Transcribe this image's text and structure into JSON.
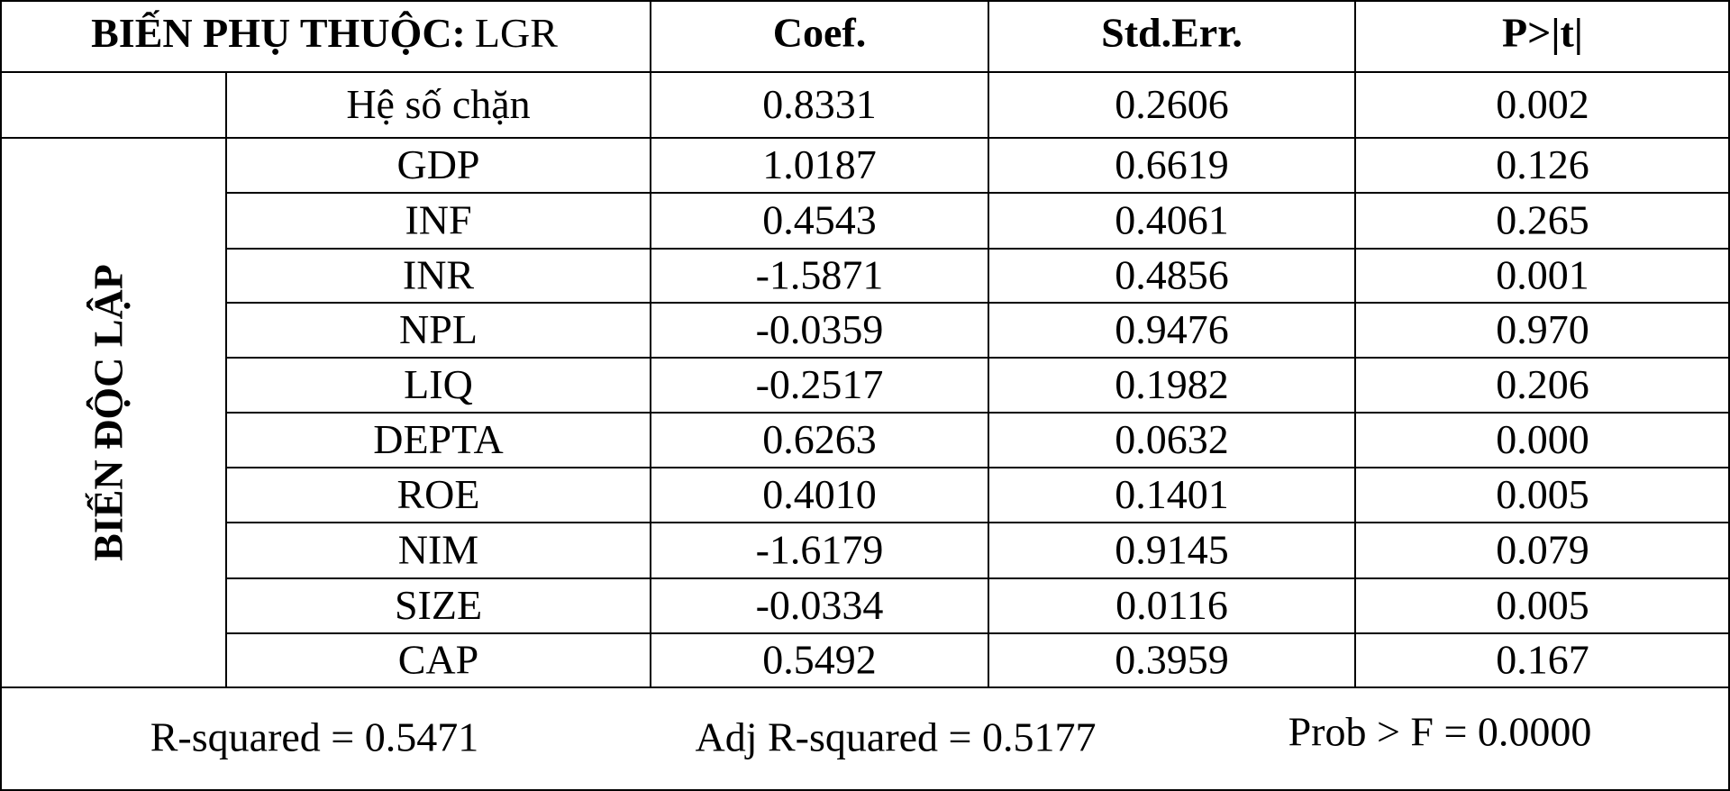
{
  "header": {
    "dependent_label": "BIẾN PHỤ THUỘC:",
    "dependent_var": "LGR",
    "columns": [
      "Coef.",
      "Std.Err.",
      "P>|t|"
    ]
  },
  "table": {
    "group_label": "BIẾN ĐỘC LẬP",
    "rows": [
      [
        "Hệ số chặn",
        "0.8331",
        "0.2606",
        "0.002"
      ],
      [
        "GDP",
        "1.0187",
        "0.6619",
        "0.126"
      ],
      [
        "INF",
        "0.4543",
        "0.4061",
        "0.265"
      ],
      [
        "INR",
        "-1.5871",
        "0.4856",
        "0.001"
      ],
      [
        "NPL",
        "-0.0359",
        "0.9476",
        "0.970"
      ],
      [
        "LIQ",
        "-0.2517",
        "0.1982",
        "0.206"
      ],
      [
        "DEPTA",
        "0.6263",
        "0.0632",
        "0.000"
      ],
      [
        "ROE",
        "0.4010",
        "0.1401",
        "0.005"
      ],
      [
        "NIM",
        "-1.6179",
        "0.9145",
        "0.079"
      ],
      [
        "SIZE",
        "-0.0334",
        "0.0116",
        "0.005"
      ],
      [
        "CAP",
        "0.5492",
        "0.3959",
        "0.167"
      ]
    ]
  },
  "footer": {
    "stats": [
      "R-squared = 0.5471",
      "Adj R-squared = 0.5177",
      "Prob > F = 0.0000"
    ]
  }
}
